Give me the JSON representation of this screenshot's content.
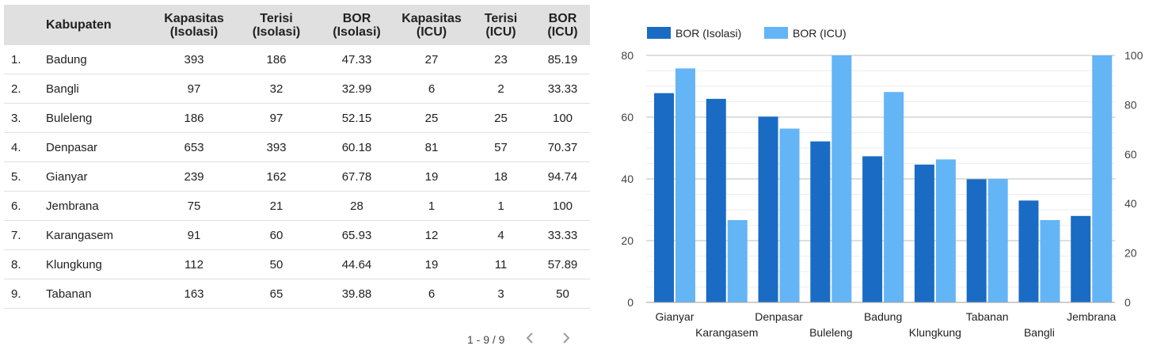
{
  "table": {
    "headers": [
      "",
      "Kabupaten",
      "Kapasitas\n(Isolasi)",
      "Terisi\n(Isolasi)",
      "BOR\n(Isolasi)",
      "Kapasitas\n(ICU)",
      "Terisi\n(ICU)",
      "BOR\n(ICU)"
    ],
    "rows": [
      [
        "1.",
        "Badung",
        "393",
        "186",
        "47.33",
        "27",
        "23",
        "85.19"
      ],
      [
        "2.",
        "Bangli",
        "97",
        "32",
        "32.99",
        "6",
        "2",
        "33.33"
      ],
      [
        "3.",
        "Buleleng",
        "186",
        "97",
        "52.15",
        "25",
        "25",
        "100"
      ],
      [
        "4.",
        "Denpasar",
        "653",
        "393",
        "60.18",
        "81",
        "57",
        "70.37"
      ],
      [
        "5.",
        "Gianyar",
        "239",
        "162",
        "67.78",
        "19",
        "18",
        "94.74"
      ],
      [
        "6.",
        "Jembrana",
        "75",
        "21",
        "28",
        "1",
        "1",
        "100"
      ],
      [
        "7.",
        "Karangasem",
        "91",
        "60",
        "65.93",
        "12",
        "4",
        "33.33"
      ],
      [
        "8.",
        "Klungkung",
        "112",
        "50",
        "44.64",
        "19",
        "11",
        "57.89"
      ],
      [
        "9.",
        "Tabanan",
        "163",
        "65",
        "39.88",
        "6",
        "3",
        "50"
      ]
    ]
  },
  "pagination": {
    "label": "1 - 9 / 9",
    "prev_icon": "chevron-left-icon",
    "next_icon": "chevron-right-icon"
  },
  "chart_data": {
    "type": "bar",
    "categories": [
      "Gianyar",
      "Karangasem",
      "Denpasar",
      "Buleleng",
      "Badung",
      "Klungkung",
      "Tabanan",
      "Bangli",
      "Jembrana"
    ],
    "series": [
      {
        "name": "BOR (Isolasi)",
        "values": [
          67.78,
          65.93,
          60.18,
          52.15,
          47.33,
          44.64,
          39.88,
          32.99,
          28
        ],
        "axis": "left",
        "color": "#1a6bc4"
      },
      {
        "name": "BOR (ICU)",
        "values": [
          94.74,
          33.33,
          70.37,
          100,
          85.19,
          57.89,
          50,
          33.33,
          100
        ],
        "axis": "right",
        "color": "#64b5f6"
      }
    ],
    "y_left": {
      "ylim": [
        0,
        80
      ],
      "ticks": [
        "0",
        "20",
        "40",
        "60",
        "80"
      ]
    },
    "y_right": {
      "ylim": [
        0,
        100
      ],
      "ticks": [
        "0",
        "20",
        "40",
        "60",
        "80",
        "100"
      ]
    },
    "grid": true,
    "legend": "top-left",
    "title": "",
    "xlabel": "",
    "ylabel": ""
  }
}
